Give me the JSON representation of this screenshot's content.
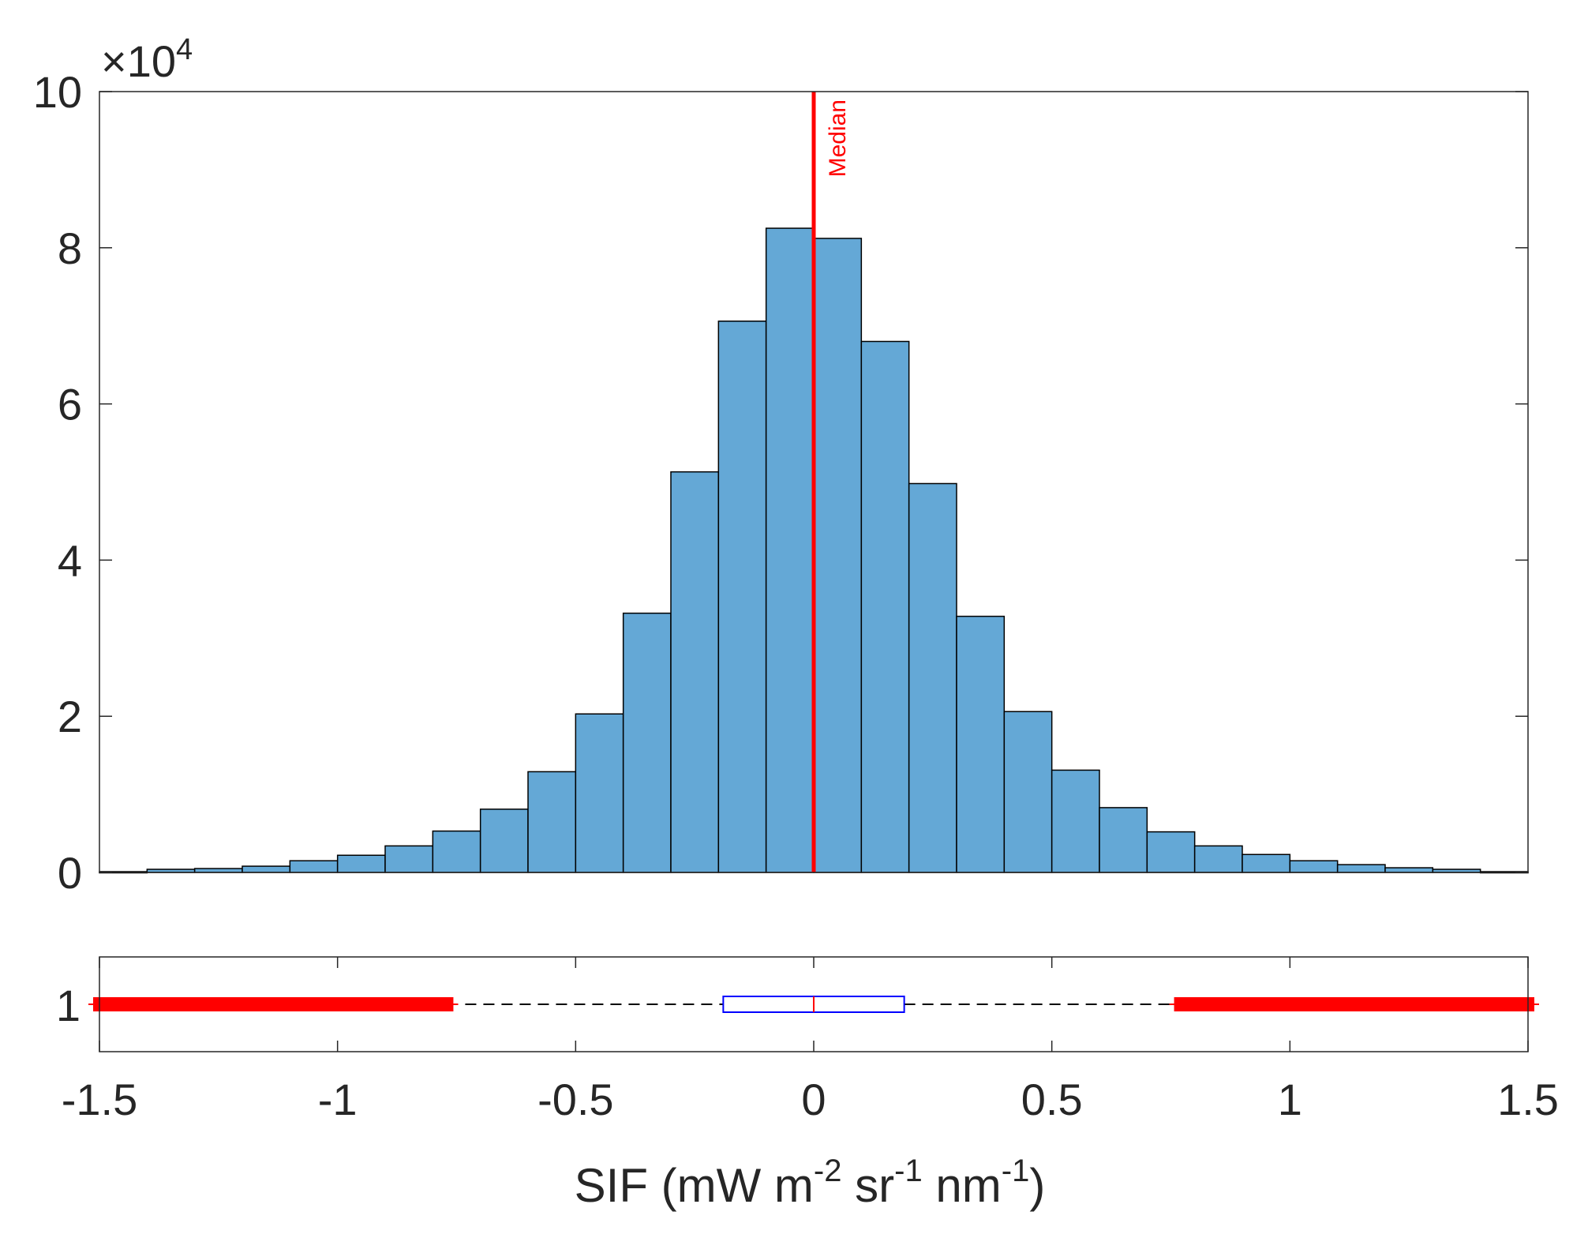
{
  "chart_data": [
    {
      "type": "histogram",
      "title": "",
      "ylabel": "",
      "y_multiplier_label": "×10",
      "y_multiplier_exponent": "4",
      "xlim": [
        -1.5,
        1.5
      ],
      "ylim": [
        0,
        100000
      ],
      "bin_width": 0.1,
      "bin_edges_start": -1.5,
      "counts": [
        100,
        400,
        500,
        800,
        1500,
        2200,
        3400,
        5300,
        8100,
        12900,
        20300,
        33200,
        51300,
        70600,
        82500,
        81200,
        68000,
        49800,
        32800,
        20600,
        13100,
        8300,
        5200,
        3400,
        2300,
        1500,
        1000,
        600,
        400,
        100
      ],
      "y_ticks": [
        0,
        20000,
        40000,
        60000,
        80000,
        100000
      ],
      "y_tick_labels": [
        "0",
        "2",
        "4",
        "6",
        "8",
        "10"
      ],
      "bar_color": "#64a8d6",
      "median": {
        "value": 0.0,
        "label": "Median",
        "color": "#ff0000"
      }
    },
    {
      "type": "boxplot",
      "orientation": "horizontal",
      "y_tick_labels": [
        "1"
      ],
      "q1": -0.19,
      "median": 0.0,
      "q3": 0.19,
      "whisker_low": -0.77,
      "whisker_high": 0.77,
      "outlier_ranges": [
        [
          -1.5,
          -0.77
        ],
        [
          0.77,
          1.5
        ]
      ],
      "box_color": "#0000ff",
      "outlier_color": "#ff0000",
      "x_ticks": [
        -1.5,
        -1,
        -0.5,
        0,
        0.5,
        1,
        1.5
      ],
      "x_tick_labels": [
        "-1.5",
        "-1",
        "-0.5",
        "0",
        "0.5",
        "1",
        "1.5"
      ],
      "xlabel": {
        "prefix": "SIF (mW m",
        "sup1": "-2",
        "mid1": " sr",
        "sup2": "-1",
        "mid2": " nm",
        "sup3": "-1",
        "suffix": ")"
      }
    }
  ]
}
